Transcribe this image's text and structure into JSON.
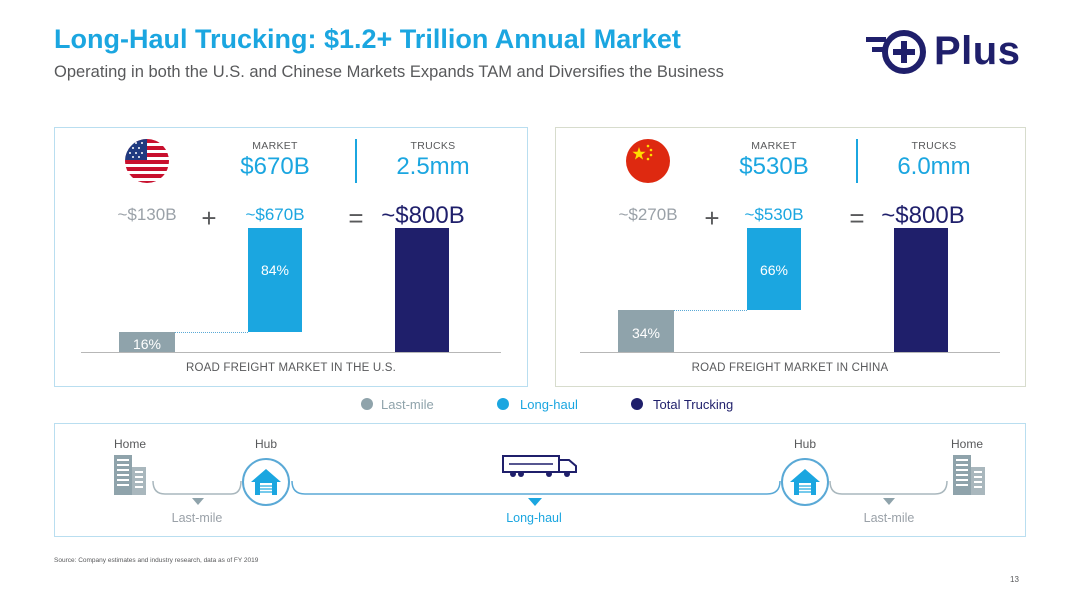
{
  "slide": {
    "title": "Long-Haul Trucking: $1.2+ Trillion Annual Market",
    "subtitle": "Operating in both the U.S. and Chinese Markets Expands TAM and Diversifies the Business",
    "logo_text": "Plus",
    "source": "Source: Company estimates and industry research, data as of FY 2019",
    "page_number": "13"
  },
  "colors": {
    "title_blue": "#1ba6e0",
    "last_mile": "#8fa3ab",
    "long_haul": "#1ba6e0",
    "total_trucking": "#1f1f6b"
  },
  "panels": [
    {
      "flag": "us-flag-icon",
      "market_label": "MARKET",
      "market_value": "$670B",
      "trucks_label": "TRUCKS",
      "trucks_value": "2.5mm",
      "last_mile_value": "~$130B",
      "plus": "+",
      "long_haul_value": "~$670B",
      "equals": "=",
      "total_value": "~$800B",
      "caption": "ROAD FREIGHT MARKET IN THE U.S."
    },
    {
      "flag": "china-flag-icon",
      "market_label": "MARKET",
      "market_value": "$530B",
      "trucks_label": "TRUCKS",
      "trucks_value": "6.0mm",
      "last_mile_value": "~$270B",
      "plus": "+",
      "long_haul_value": "~$530B",
      "equals": "=",
      "total_value": "~$800B",
      "caption": "ROAD FREIGHT MARKET IN CHINA"
    }
  ],
  "chart_data": [
    {
      "type": "bar",
      "chart_style": "waterfall",
      "categories": [
        "Last-mile",
        "Long-haul",
        "Total Trucking"
      ],
      "values": [
        130,
        670,
        800
      ],
      "percent_labels": [
        "16%",
        "84%",
        ""
      ],
      "series": [
        {
          "name": "Last-mile",
          "values": [
            130,
            null,
            null
          ]
        },
        {
          "name": "Long-haul",
          "values": [
            null,
            670,
            null
          ]
        },
        {
          "name": "Total Trucking",
          "values": [
            null,
            null,
            800
          ]
        }
      ],
      "ylim": [
        0,
        800
      ],
      "xlabel": "ROAD FREIGHT MARKET IN THE U.S.",
      "grid": false,
      "legend": "bottom-center"
    },
    {
      "type": "bar",
      "chart_style": "waterfall",
      "categories": [
        "Last-mile",
        "Long-haul",
        "Total Trucking"
      ],
      "values": [
        270,
        530,
        800
      ],
      "percent_labels": [
        "34%",
        "66%",
        ""
      ],
      "series": [
        {
          "name": "Last-mile",
          "values": [
            270,
            null,
            null
          ]
        },
        {
          "name": "Long-haul",
          "values": [
            null,
            530,
            null
          ]
        },
        {
          "name": "Total Trucking",
          "values": [
            null,
            null,
            800
          ]
        }
      ],
      "ylim": [
        0,
        800
      ],
      "xlabel": "ROAD FREIGHT MARKET IN CHINA",
      "grid": false,
      "legend": "bottom-center"
    }
  ],
  "legend": [
    {
      "label": "Last-mile",
      "color": "#8fa3ab"
    },
    {
      "label": "Long-haul",
      "color": "#1ba6e0"
    },
    {
      "label": "Total Trucking",
      "color": "#1f1f6b"
    }
  ],
  "diagram": {
    "home_left": "Home",
    "hub_left": "Hub",
    "hub_right": "Hub",
    "home_right": "Home",
    "last_mile_left": "Last-mile",
    "long_haul": "Long-haul",
    "last_mile_right": "Last-mile",
    "icons": [
      "building-icon",
      "warehouse-icon",
      "truck-icon"
    ]
  }
}
